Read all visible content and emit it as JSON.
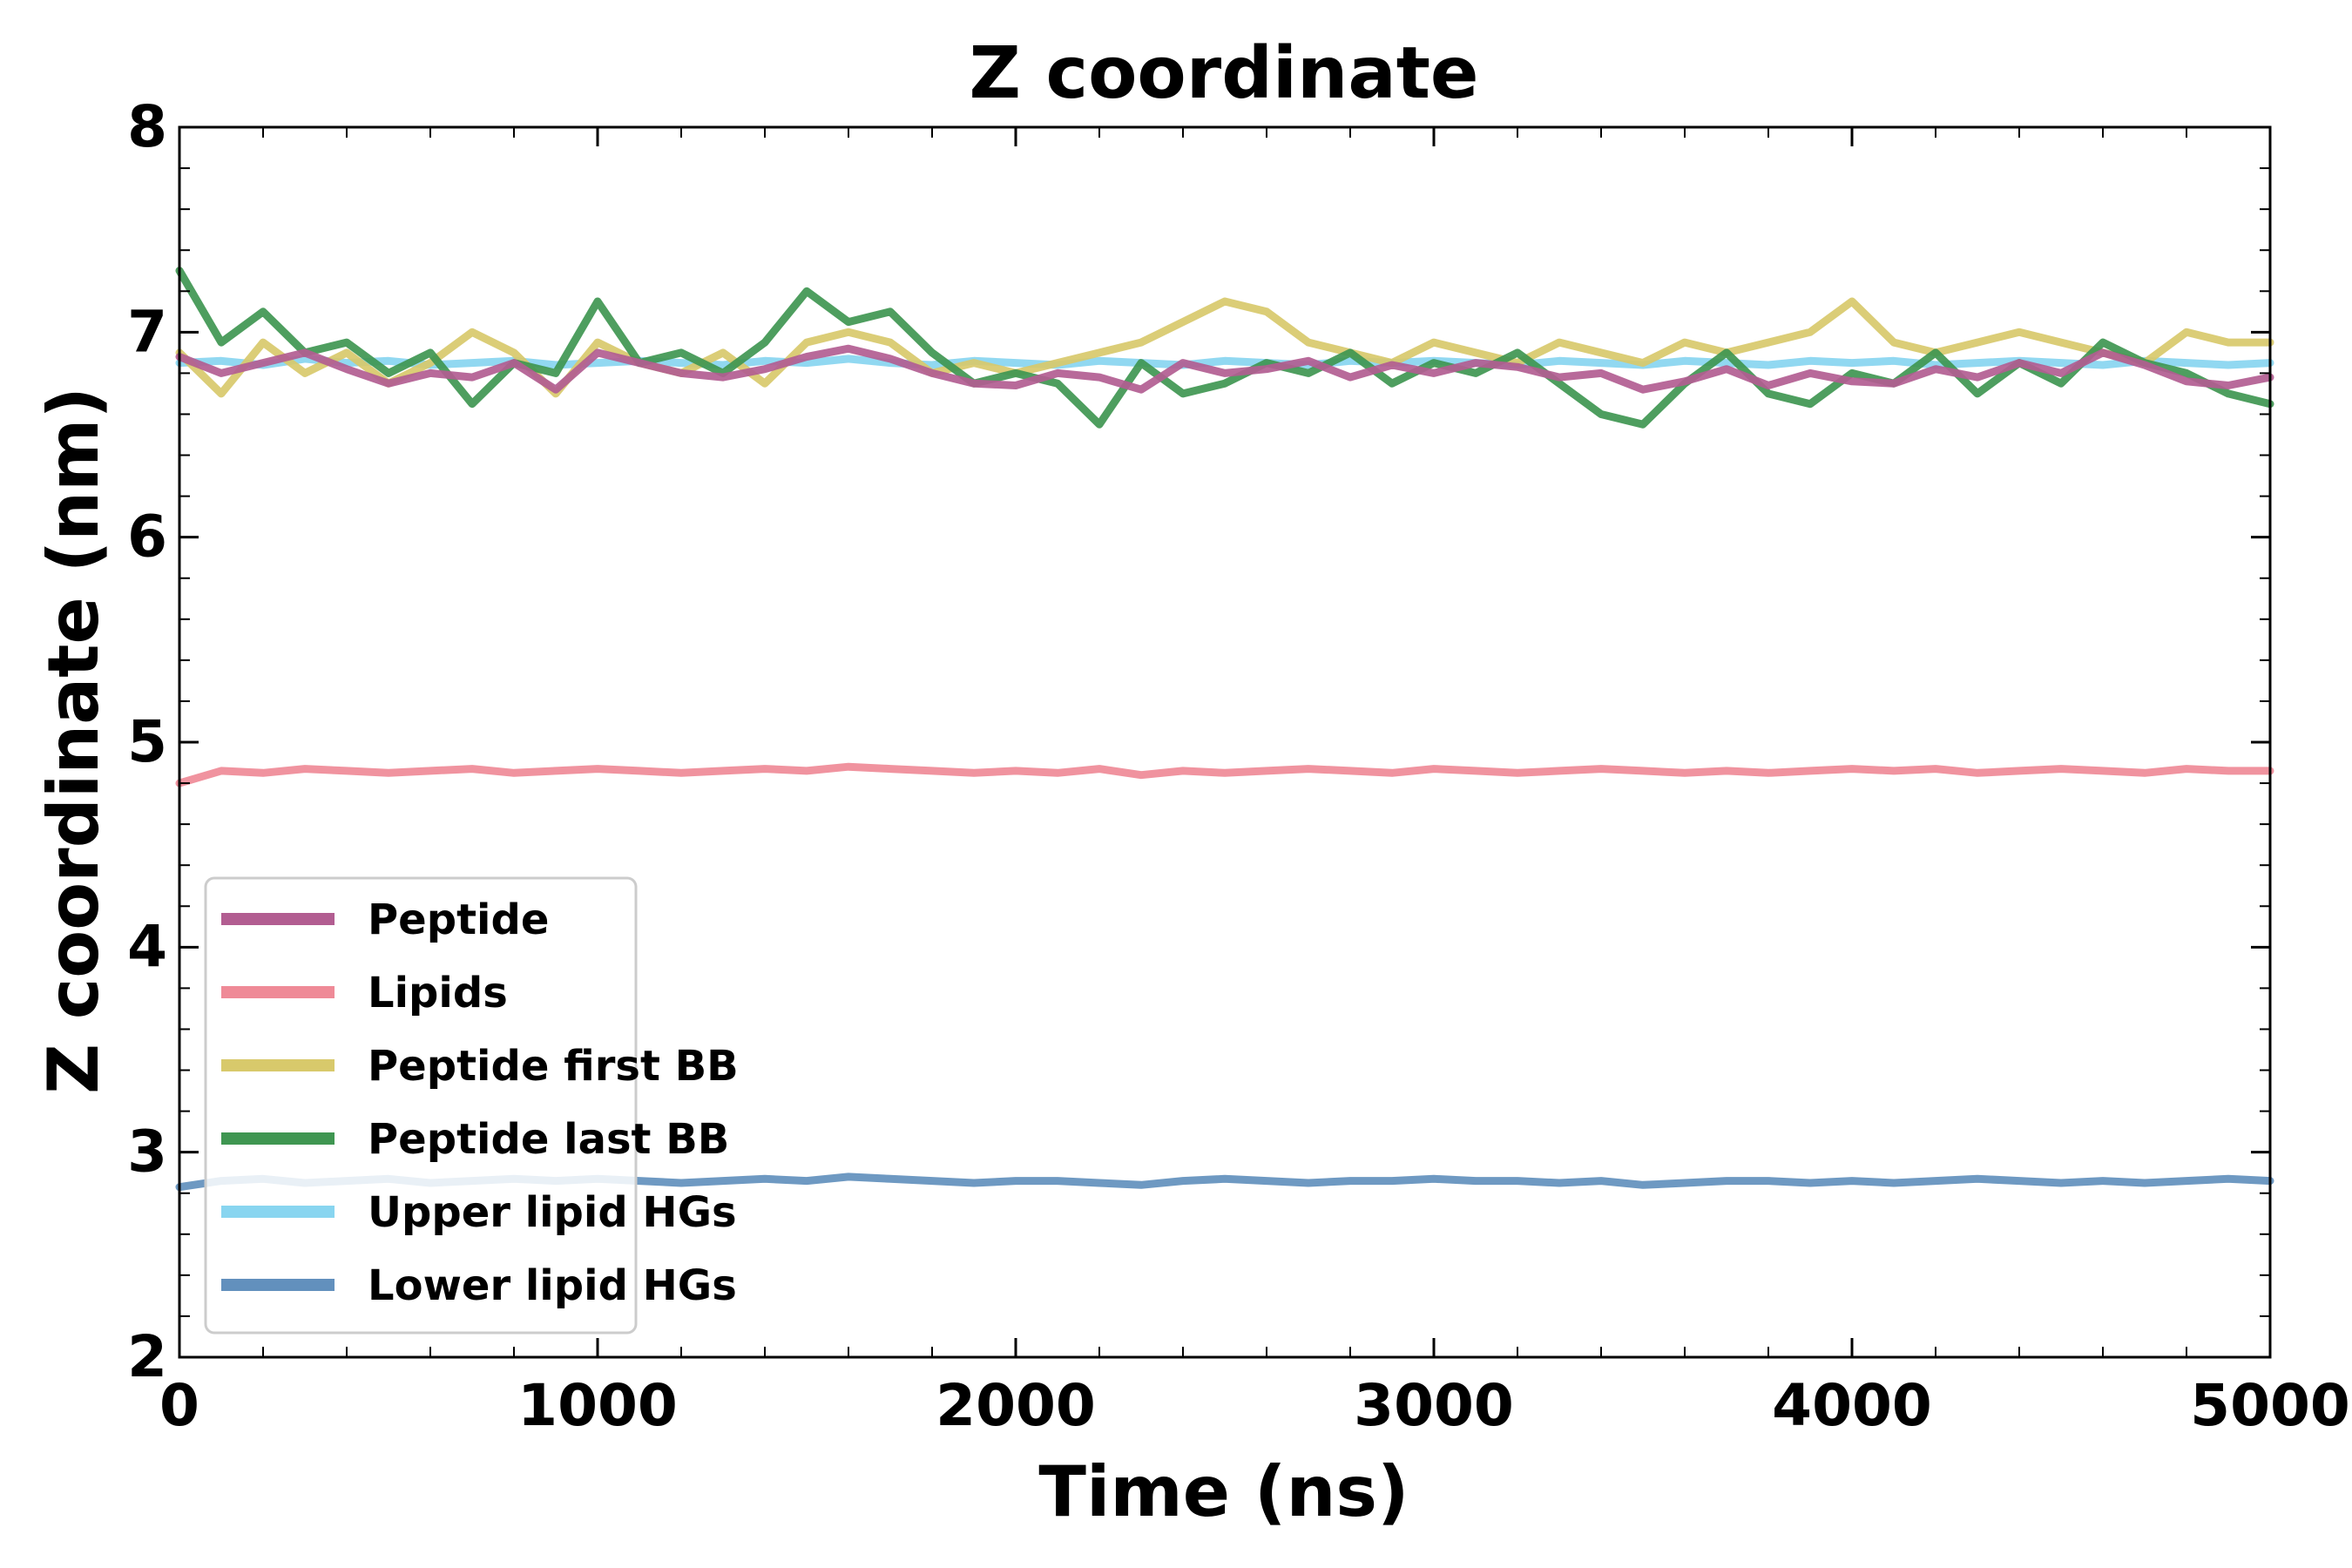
{
  "chart_data": {
    "type": "line",
    "title": "Z coordinate",
    "xlabel": "Time (ns)",
    "ylabel": "Z coordinate (nm)",
    "xlim": [
      0,
      5000
    ],
    "ylim": [
      2,
      8
    ],
    "xticks": [
      0,
      1000,
      2000,
      3000,
      4000,
      5000
    ],
    "yticks": [
      2,
      3,
      4,
      5,
      6,
      7,
      8
    ],
    "grid": false,
    "legend_position": "lower-left",
    "x": [
      0,
      100,
      200,
      300,
      400,
      500,
      600,
      700,
      800,
      900,
      1000,
      1100,
      1200,
      1300,
      1400,
      1500,
      1600,
      1700,
      1800,
      1900,
      2000,
      2100,
      2200,
      2300,
      2400,
      2500,
      2600,
      2700,
      2800,
      2900,
      3000,
      3100,
      3200,
      3300,
      3400,
      3500,
      3600,
      3700,
      3800,
      3900,
      4000,
      4100,
      4200,
      4300,
      4400,
      4500,
      4600,
      4700,
      4800,
      4900,
      5000
    ],
    "series": [
      {
        "name": "Upper lipid HGs",
        "color": "#88d5f0",
        "values": [
          6.85,
          6.86,
          6.84,
          6.87,
          6.85,
          6.86,
          6.84,
          6.85,
          6.86,
          6.84,
          6.85,
          6.86,
          6.85,
          6.84,
          6.86,
          6.85,
          6.87,
          6.85,
          6.84,
          6.86,
          6.85,
          6.84,
          6.86,
          6.85,
          6.84,
          6.86,
          6.85,
          6.84,
          6.86,
          6.85,
          6.86,
          6.85,
          6.84,
          6.86,
          6.85,
          6.84,
          6.86,
          6.85,
          6.84,
          6.86,
          6.85,
          6.86,
          6.84,
          6.85,
          6.86,
          6.85,
          6.84,
          6.86,
          6.85,
          6.84,
          6.85
        ]
      },
      {
        "name": "Lipids",
        "color": "#ef8a97",
        "values": [
          4.8,
          4.86,
          4.85,
          4.87,
          4.86,
          4.85,
          4.86,
          4.87,
          4.85,
          4.86,
          4.87,
          4.86,
          4.85,
          4.86,
          4.87,
          4.86,
          4.88,
          4.87,
          4.86,
          4.85,
          4.86,
          4.85,
          4.87,
          4.84,
          4.86,
          4.85,
          4.86,
          4.87,
          4.86,
          4.85,
          4.87,
          4.86,
          4.85,
          4.86,
          4.87,
          4.86,
          4.85,
          4.86,
          4.85,
          4.86,
          4.87,
          4.86,
          4.87,
          4.85,
          4.86,
          4.87,
          4.86,
          4.85,
          4.87,
          4.86,
          4.86
        ]
      },
      {
        "name": "Lower lipid HGs",
        "color": "#6290bd",
        "values": [
          2.83,
          2.86,
          2.87,
          2.85,
          2.86,
          2.87,
          2.85,
          2.86,
          2.87,
          2.86,
          2.87,
          2.86,
          2.85,
          2.86,
          2.87,
          2.86,
          2.88,
          2.87,
          2.86,
          2.85,
          2.86,
          2.86,
          2.85,
          2.84,
          2.86,
          2.87,
          2.86,
          2.85,
          2.86,
          2.86,
          2.87,
          2.86,
          2.86,
          2.85,
          2.86,
          2.84,
          2.85,
          2.86,
          2.86,
          2.85,
          2.86,
          2.85,
          2.86,
          2.87,
          2.86,
          2.85,
          2.86,
          2.85,
          2.86,
          2.87,
          2.86
        ]
      },
      {
        "name": "Peptide first BB",
        "color": "#d8c96b",
        "values": [
          6.9,
          6.7,
          6.95,
          6.8,
          6.9,
          6.75,
          6.85,
          7.0,
          6.9,
          6.7,
          6.95,
          6.85,
          6.8,
          6.9,
          6.75,
          6.95,
          7.0,
          6.95,
          6.8,
          6.85,
          6.8,
          6.85,
          6.9,
          6.95,
          7.05,
          7.15,
          7.1,
          6.95,
          6.9,
          6.85,
          6.95,
          6.9,
          6.85,
          6.95,
          6.9,
          6.85,
          6.95,
          6.9,
          6.95,
          7.0,
          7.15,
          6.95,
          6.9,
          6.95,
          7.0,
          6.95,
          6.9,
          6.85,
          7.0,
          6.95,
          6.95
        ]
      },
      {
        "name": "Peptide last BB",
        "color": "#3f9651",
        "values": [
          7.3,
          6.95,
          7.1,
          6.9,
          6.95,
          6.8,
          6.9,
          6.65,
          6.85,
          6.8,
          7.15,
          6.85,
          6.9,
          6.8,
          6.95,
          7.2,
          7.05,
          7.1,
          6.9,
          6.75,
          6.8,
          6.75,
          6.55,
          6.85,
          6.7,
          6.75,
          6.85,
          6.8,
          6.9,
          6.75,
          6.85,
          6.8,
          6.9,
          6.75,
          6.6,
          6.55,
          6.75,
          6.9,
          6.7,
          6.65,
          6.8,
          6.75,
          6.9,
          6.7,
          6.85,
          6.75,
          6.95,
          6.85,
          6.8,
          6.7,
          6.65
        ]
      },
      {
        "name": "Peptide",
        "color": "#b25d91",
        "values": [
          6.88,
          6.8,
          6.85,
          6.9,
          6.82,
          6.75,
          6.8,
          6.78,
          6.85,
          6.72,
          6.9,
          6.85,
          6.8,
          6.78,
          6.82,
          6.88,
          6.92,
          6.87,
          6.8,
          6.75,
          6.74,
          6.8,
          6.78,
          6.72,
          6.85,
          6.8,
          6.82,
          6.86,
          6.78,
          6.84,
          6.8,
          6.85,
          6.83,
          6.78,
          6.8,
          6.72,
          6.76,
          6.82,
          6.74,
          6.8,
          6.76,
          6.75,
          6.82,
          6.78,
          6.85,
          6.8,
          6.9,
          6.84,
          6.76,
          6.74,
          6.78
        ]
      }
    ],
    "legend_order": [
      "Peptide",
      "Lipids",
      "Peptide first BB",
      "Peptide last BB",
      "Upper lipid HGs",
      "Lower lipid HGs"
    ]
  }
}
